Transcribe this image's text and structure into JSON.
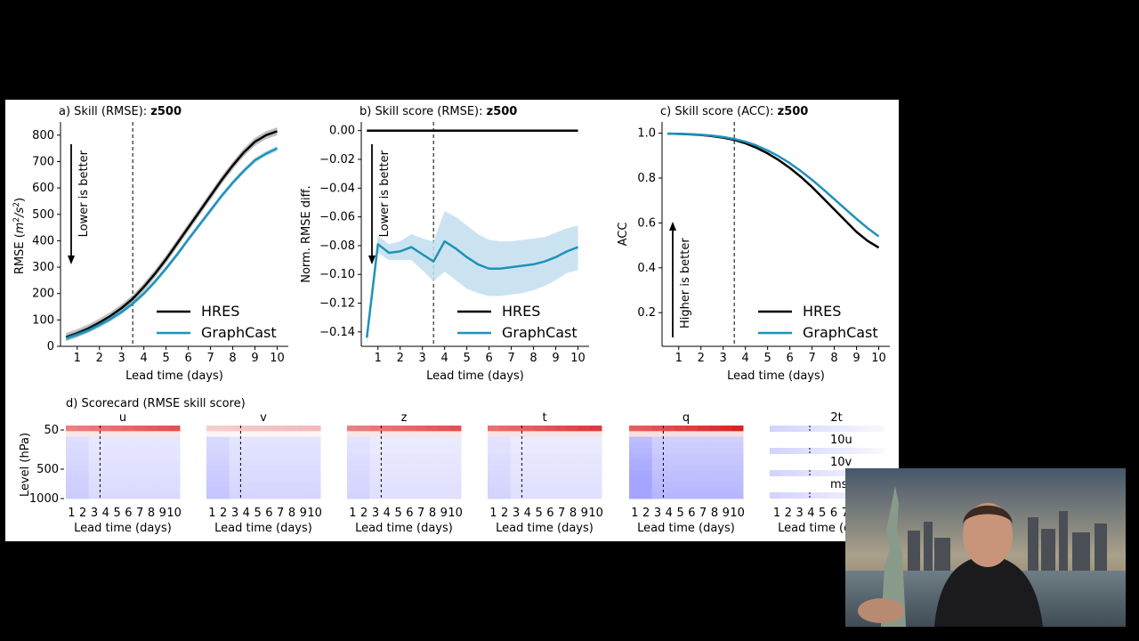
{
  "chart_data": [
    {
      "panel": "a",
      "type": "line",
      "title": "a) Skill (RMSE): ",
      "title_bold": "z500",
      "xlabel": "Lead time (days)",
      "ylabel": "RMSE (m²/s²)",
      "ylabel_main": "RMSE (",
      "ylabel_math": "m",
      "ylabel_sup1": "2",
      "ylabel_slash": "/s",
      "ylabel_sup2": "2",
      "ylabel_close": ")",
      "xlim": [
        0.25,
        10.5
      ],
      "ylim": [
        0,
        850
      ],
      "xticks": [
        1,
        2,
        3,
        4,
        5,
        6,
        7,
        8,
        9,
        10
      ],
      "yticks": [
        0,
        100,
        200,
        300,
        400,
        500,
        600,
        700,
        800
      ],
      "vline_x": 3.5,
      "annotation": "Lower is better",
      "annotation_arrow": "down",
      "x": [
        0.5,
        1,
        1.5,
        2,
        2.5,
        3,
        3.5,
        4,
        4.5,
        5,
        5.5,
        6,
        6.5,
        7,
        7.5,
        8,
        8.5,
        9,
        9.5,
        10
      ],
      "series": [
        {
          "name": "HRES",
          "color": "#000000",
          "values": [
            35,
            50,
            68,
            90,
            115,
            145,
            180,
            225,
            275,
            330,
            390,
            450,
            510,
            570,
            630,
            685,
            735,
            775,
            800,
            815
          ],
          "band": 15
        },
        {
          "name": "GraphCast",
          "color": "#1f92b8",
          "values": [
            30,
            44,
            60,
            80,
            103,
            130,
            162,
            200,
            245,
            295,
            348,
            405,
            460,
            515,
            570,
            620,
            665,
            705,
            730,
            750
          ],
          "band": 10
        }
      ],
      "legend_loc": "lower-right"
    },
    {
      "panel": "b",
      "type": "line",
      "title": "b) Skill score (RMSE): ",
      "title_bold": "z500",
      "xlabel": "Lead time (days)",
      "ylabel": "Norm. RMSE diff.",
      "xlim": [
        0.25,
        10.5
      ],
      "ylim": [
        -0.15,
        0.006
      ],
      "xticks": [
        1,
        2,
        3,
        4,
        5,
        6,
        7,
        8,
        9,
        10
      ],
      "yticks": [
        0.0,
        -0.02,
        -0.04,
        -0.06,
        -0.08,
        -0.1,
        -0.12,
        -0.14
      ],
      "ytick_labels": [
        "0.00",
        "−0.02",
        "−0.04",
        "−0.06",
        "−0.08",
        "−0.10",
        "−0.12",
        "−0.14"
      ],
      "vline_x": 3.5,
      "annotation": "Lower is better",
      "annotation_arrow": "down",
      "series": [
        {
          "name": "HRES",
          "color": "#000000",
          "x": [
            0.5,
            10
          ],
          "values": [
            0,
            0
          ]
        },
        {
          "name": "GraphCast",
          "color": "#1f92b8",
          "x": [
            0.5,
            1,
            1.5,
            2,
            2.5,
            3,
            3.5,
            4,
            4.5,
            5,
            5.5,
            6,
            6.5,
            7,
            7.5,
            8,
            8.5,
            9,
            9.5,
            10
          ],
          "values": [
            -0.144,
            -0.079,
            -0.085,
            -0.084,
            -0.081,
            -0.086,
            -0.091,
            -0.077,
            -0.082,
            -0.088,
            -0.093,
            -0.096,
            -0.096,
            -0.095,
            -0.094,
            -0.093,
            -0.091,
            -0.088,
            -0.084,
            -0.081
          ],
          "lower": [
            -0.15,
            -0.085,
            -0.09,
            -0.09,
            -0.09,
            -0.097,
            -0.105,
            -0.098,
            -0.104,
            -0.11,
            -0.113,
            -0.115,
            -0.115,
            -0.114,
            -0.113,
            -0.111,
            -0.108,
            -0.104,
            -0.099,
            -0.097
          ],
          "upper": [
            -0.138,
            -0.073,
            -0.079,
            -0.077,
            -0.072,
            -0.075,
            -0.077,
            -0.056,
            -0.06,
            -0.066,
            -0.072,
            -0.076,
            -0.077,
            -0.077,
            -0.076,
            -0.075,
            -0.074,
            -0.071,
            -0.068,
            -0.066
          ]
        }
      ],
      "legend_loc": "lower-right"
    },
    {
      "panel": "c",
      "type": "line",
      "title": "c) Skill score (ACC): ",
      "title_bold": "z500",
      "xlabel": "Lead time (days)",
      "ylabel": "ACC",
      "xlim": [
        0.25,
        10.5
      ],
      "ylim": [
        0.05,
        1.05
      ],
      "xticks": [
        1,
        2,
        3,
        4,
        5,
        6,
        7,
        8,
        9,
        10
      ],
      "yticks": [
        0.2,
        0.4,
        0.6,
        0.8,
        1.0
      ],
      "ytick_labels": [
        "0.2",
        "0.4",
        "0.6",
        "0.8",
        "1.0"
      ],
      "vline_x": 3.5,
      "annotation": "Higher is better",
      "annotation_arrow": "up",
      "x": [
        0.5,
        1,
        1.5,
        2,
        2.5,
        3,
        3.5,
        4,
        4.5,
        5,
        5.5,
        6,
        6.5,
        7,
        7.5,
        8,
        8.5,
        9,
        9.5,
        10
      ],
      "series": [
        {
          "name": "HRES",
          "color": "#000000",
          "values": [
            0.998,
            0.997,
            0.995,
            0.992,
            0.987,
            0.98,
            0.97,
            0.955,
            0.935,
            0.91,
            0.88,
            0.845,
            0.805,
            0.76,
            0.71,
            0.66,
            0.61,
            0.56,
            0.52,
            0.49
          ]
        },
        {
          "name": "GraphCast",
          "color": "#1f92b8",
          "values": [
            0.998,
            0.997,
            0.996,
            0.993,
            0.989,
            0.983,
            0.974,
            0.962,
            0.945,
            0.923,
            0.897,
            0.866,
            0.831,
            0.792,
            0.75,
            0.706,
            0.662,
            0.618,
            0.577,
            0.54
          ]
        }
      ],
      "legend_loc": "lower-right"
    },
    {
      "panel": "d",
      "type": "heatmap",
      "title": "d) Scorecard (RMSE skill score)",
      "ylabel": "Level (hPa)",
      "yticks": [
        "50",
        "500",
        "1000"
      ],
      "xticks": [
        "1",
        "2",
        "3",
        "4",
        "5",
        "6",
        "7",
        "8",
        "9",
        "10"
      ],
      "xlabel": "Lead time (days)",
      "vline_x": 3.5,
      "variables": [
        {
          "name": "u",
          "top_red": 0.75,
          "body": 0.14
        },
        {
          "name": "v",
          "top_red": 0.3,
          "body": 0.16
        },
        {
          "name": "z",
          "top_red": 0.75,
          "body": 0.12
        },
        {
          "name": "t",
          "top_red": 0.85,
          "body": 0.12
        },
        {
          "name": "q",
          "top_red": 0.95,
          "body": 0.28
        }
      ],
      "surface_panel": {
        "title": "2t",
        "labels": [
          "10u",
          "10v",
          "msl"
        ]
      }
    }
  ],
  "legend": {
    "hres": "HRES",
    "graphcast": "GraphCast"
  },
  "colors": {
    "hres": "#000000",
    "graphcast": "#1f92b8",
    "band": "#c2deef",
    "red": "#d62728",
    "blue": "#6b6bdc"
  },
  "webcam": {
    "description_icon": "presenter-webcam-overlay"
  }
}
